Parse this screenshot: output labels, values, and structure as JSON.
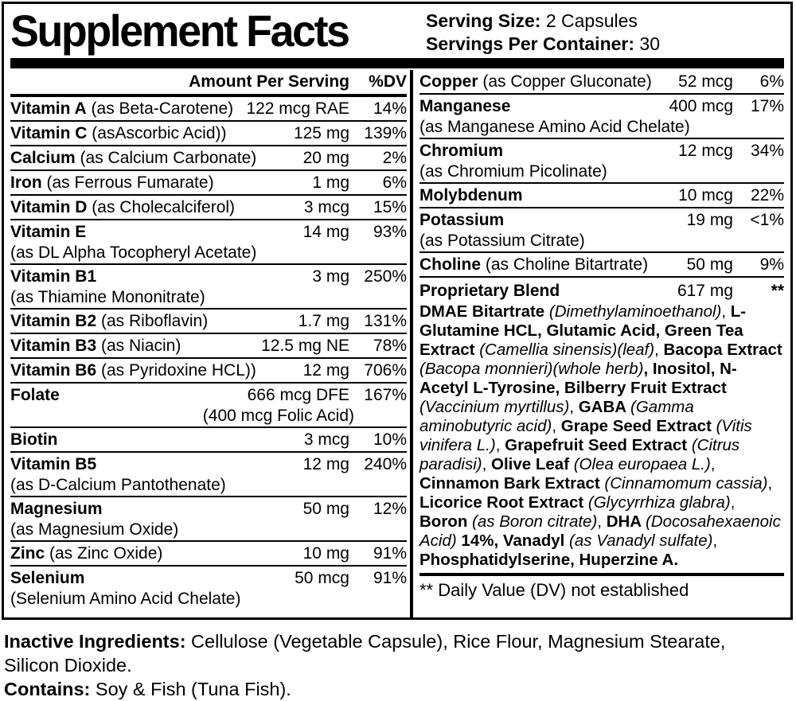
{
  "colors": {
    "text": "#000000",
    "background": "#ffffff"
  },
  "header": {
    "title": "Supplement Facts",
    "serving_size_label": "Serving Size:",
    "serving_size_value": " 2 Capsules",
    "servings_per_container_label": "Servings Per Container:",
    "servings_per_container_value": " 30"
  },
  "table": {
    "left_column": {
      "header": {
        "amount_label": "Amount Per Serving",
        "dv_label": "%DV"
      },
      "rows": [
        {
          "name": "Vitamin A",
          "detail": "(as Beta-Carotene)",
          "amount": "122 mcg RAE",
          "dv": "14%",
          "detail_inline": true
        },
        {
          "name": "Vitamin C",
          "detail": "(asAscorbic Acid))",
          "amount": "125 mg",
          "dv": "139%",
          "detail_inline": true
        },
        {
          "name": "Calcium",
          "detail": "(as Calcium Carbonate)",
          "amount": "20 mg",
          "dv": "2%",
          "detail_inline": true
        },
        {
          "name": "Iron",
          "detail": "(as Ferrous Fumarate)",
          "amount": "1 mg",
          "dv": "6%",
          "detail_inline": true
        },
        {
          "name": "Vitamin D",
          "detail": "(as Cholecalciferol)",
          "amount": "3 mcg",
          "dv": "15%",
          "detail_inline": true
        },
        {
          "name": "Vitamin E",
          "detail": "(as DL Alpha Tocopheryl Acetate)",
          "amount": "14 mg",
          "dv": "93%",
          "detail_inline": false
        },
        {
          "name": "Vitamin B1",
          "detail": "(as Thiamine Mononitrate)",
          "amount": "3 mg",
          "dv": "250%",
          "detail_inline": false
        },
        {
          "name": "Vitamin B2",
          "detail": "(as Riboflavin)",
          "amount": "1.7 mg",
          "dv": "131%",
          "detail_inline": true
        },
        {
          "name": "Vitamin B3",
          "detail": "(as Niacin)",
          "amount": "12.5 mg NE",
          "dv": "78%",
          "detail_inline": true
        },
        {
          "name": "Vitamin B6",
          "detail": "(as Pyridoxine HCL))",
          "amount": "12 mg",
          "dv": "706%",
          "detail_inline": true
        },
        {
          "name": "Folate",
          "detail": "(400 mcg Folic Acid)",
          "amount": "666 mcg DFE",
          "dv": "167%",
          "detail_inline": false,
          "detail_align": "right"
        },
        {
          "name": "Biotin",
          "amount": "3 mcg",
          "dv": "10%"
        },
        {
          "name": "Vitamin B5",
          "detail": "(as D-Calcium Pantothenate)",
          "amount": "12 mg",
          "dv": "240%",
          "detail_inline": false
        },
        {
          "name": "Magnesium",
          "detail": "(as Magnesium Oxide)",
          "amount": "50 mg",
          "dv": "12%",
          "detail_inline": false
        },
        {
          "name": "Zinc",
          "detail": "(as Zinc Oxide)",
          "amount": "10 mg",
          "dv": "91%",
          "detail_inline": true
        },
        {
          "name": "Selenium",
          "detail": "(Selenium Amino Acid Chelate)",
          "amount": "50 mcg",
          "dv": "91%",
          "detail_inline": false
        }
      ]
    },
    "right_column": {
      "rows": [
        {
          "name": "Copper",
          "detail": "(as Copper Gluconate)",
          "amount": "52 mcg",
          "dv": "6%",
          "detail_inline": true
        },
        {
          "name": "Manganese",
          "detail": "(as Manganese Amino Acid Chelate)",
          "amount": "400 mcg",
          "dv": "17%",
          "detail_inline": false
        },
        {
          "name": "Chromium",
          "detail": "(as Chromium Picolinate)",
          "amount": "12 mcg",
          "dv": "34%",
          "detail_inline": false
        },
        {
          "name": "Molybdenum",
          "amount": "10 mcg",
          "dv": "22%"
        },
        {
          "name": "Potassium",
          "detail": "(as Potassium Citrate)",
          "amount": "19 mg",
          "dv": "<1%",
          "detail_inline": false
        },
        {
          "name": "Choline",
          "detail": "(as Choline Bitartrate)",
          "amount": "50 mg",
          "dv": "9%",
          "detail_inline": true
        }
      ],
      "proprietary_blend": {
        "name": "Proprietary Blend",
        "amount": "617 mg",
        "dv": "**",
        "ingredients": [
          {
            "t": "DMAE Bitartrate ",
            "b": true
          },
          {
            "t": "(Dimethylaminoethanol)",
            "i": true
          },
          {
            "t": ", "
          },
          {
            "t": "L-Glutamine HCL, Glutamic Acid, Green Tea Extract ",
            "b": true
          },
          {
            "t": "(Camellia sinensis)(leaf)",
            "i": true
          },
          {
            "t": ", "
          },
          {
            "t": "Bacopa Extract ",
            "b": true
          },
          {
            "t": "(Bacopa monnieri)(whole herb)",
            "i": true
          },
          {
            "t": ", Inositol, N-Acetyl L-Tyrosine, Bilberry Fruit Extract ",
            "b": true
          },
          {
            "t": "(Vaccinium myrtillus)",
            "i": true
          },
          {
            "t": ", "
          },
          {
            "t": "GABA ",
            "b": true
          },
          {
            "t": "(Gamma aminobutyric acid)",
            "i": true
          },
          {
            "t": ", "
          },
          {
            "t": "Grape Seed Extract ",
            "b": true
          },
          {
            "t": "(Vitis vinifera L.)",
            "i": true
          },
          {
            "t": ", "
          },
          {
            "t": "Grapefruit Seed Extract ",
            "b": true
          },
          {
            "t": "(Citrus paradisi)",
            "i": true
          },
          {
            "t": ", "
          },
          {
            "t": "Olive Leaf ",
            "b": true
          },
          {
            "t": "(Olea europaea L.)",
            "i": true
          },
          {
            "t": ", "
          },
          {
            "t": "Cinnamon Bark Extract ",
            "b": true
          },
          {
            "t": "(Cinnamomum cassia)",
            "i": true
          },
          {
            "t": ", "
          },
          {
            "t": "Licorice Root Extract ",
            "b": true
          },
          {
            "t": "(Glycyrrhiza glabra)",
            "i": true
          },
          {
            "t": ", "
          },
          {
            "t": "Boron ",
            "b": true
          },
          {
            "t": "(as Boron citrate)",
            "i": true
          },
          {
            "t": ", "
          },
          {
            "t": "DHA ",
            "b": true
          },
          {
            "t": "(Docosahexaenoic Acid)",
            "i": true
          },
          {
            "t": " "
          },
          {
            "t": "14%,",
            "b": true
          },
          {
            "t": " "
          },
          {
            "t": "Vanadyl ",
            "b": true
          },
          {
            "t": "(as Vanadyl sulfate)",
            "i": true
          },
          {
            "t": ", "
          },
          {
            "t": "Phosphatidylserine, Huperzine A.",
            "b": true
          }
        ]
      },
      "footnote": "** Daily Value (DV) not established"
    }
  },
  "footer": {
    "inactive_label": "Inactive Ingredients:",
    "inactive_text": " Cellulose (Vegetable Capsule), Rice Flour, Magnesium Stearate, Silicon Dioxide.",
    "contains_label": "Contains:",
    "contains_text": " Soy & Fish (Tuna Fish)."
  }
}
